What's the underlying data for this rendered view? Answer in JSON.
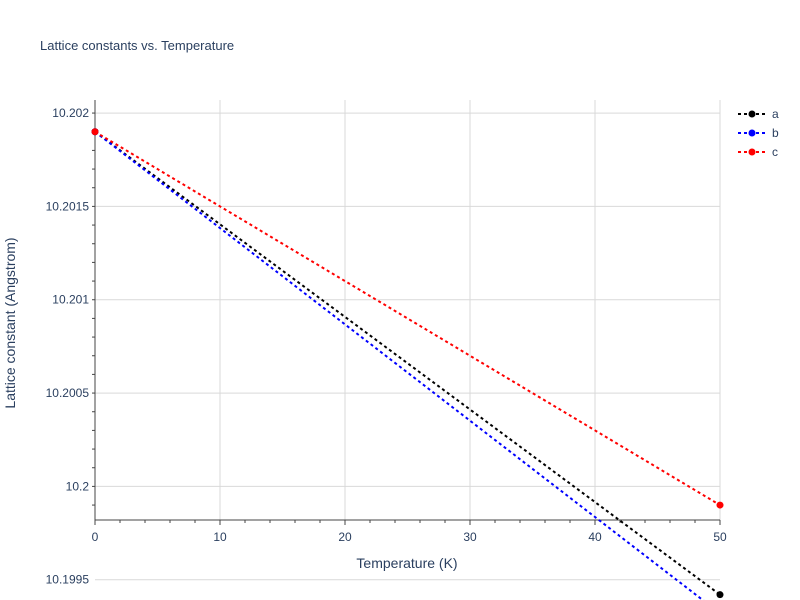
{
  "chart_data": {
    "type": "line",
    "title": "Lattice constants vs. Temperature",
    "xlabel": "Temperature (K)",
    "ylabel": "Lattice constant (Angstrom)",
    "xlim": [
      0,
      50
    ],
    "ylim": [
      10.19982,
      10.20207
    ],
    "x_ticks": [
      "0",
      "10",
      "20",
      "30",
      "40",
      "50"
    ],
    "y_ticks": [
      "10.1995",
      "10.2",
      "10.2005",
      "10.201",
      "10.2015",
      "10.202"
    ],
    "grid": true,
    "legend_position": "top-right",
    "x": [
      0,
      50
    ],
    "series": [
      {
        "name": "a",
        "color": "#000000",
        "values": [
          10.2019,
          10.19942
        ]
      },
      {
        "name": "b",
        "color": "#0000ff",
        "values": [
          10.2019,
          10.19932
        ]
      },
      {
        "name": "c",
        "color": "#ff0000",
        "values": [
          10.2019,
          10.1999
        ]
      }
    ]
  }
}
